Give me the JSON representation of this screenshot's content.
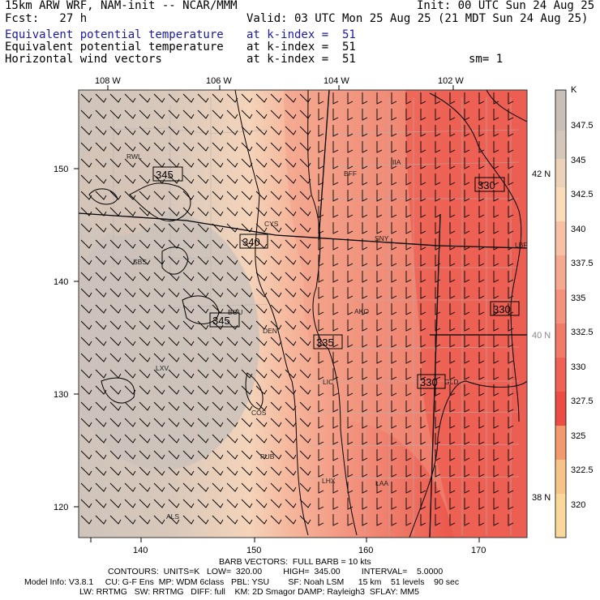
{
  "header": {
    "model_title": "15km ARW WRF, NAM-init -- NCAR/MMM",
    "init_time": "Init: 00 UTC Sun 24 Aug 25",
    "forecast_hour": "Fcst:   27 h",
    "valid_time": "Valid: 03 UTC Mon 25 Aug 25 (21 MDT Sun 24 Aug 25)",
    "fields": [
      {
        "name": "Equivalent potential temperature",
        "level": "at k-index =  51",
        "color": "#1a1aa8"
      },
      {
        "name": "Equivalent potential temperature",
        "level": "at k-index =  51",
        "color": "#000000"
      },
      {
        "name": "Horizontal wind vectors",
        "level": "at k-index =  51",
        "color": "#000000"
      }
    ],
    "smoothing": "sm= 1"
  },
  "map": {
    "top_lon_labels": [
      "108 W",
      "106 W",
      "104 W",
      "102 W"
    ],
    "right_lat_labels": [
      "42 N",
      "40 N",
      "38 N"
    ],
    "left_grid_labels": [
      "150",
      "140",
      "130",
      "120"
    ],
    "bottom_grid_labels": [
      "140",
      "150",
      "160",
      "170"
    ],
    "stations": [
      "RWL",
      "BFF",
      "IIA",
      "CYS",
      "SNY",
      "SBS",
      "LBF",
      "AKO",
      "BOU",
      "DEN",
      "LXV",
      "LIC",
      "GLD",
      "COS",
      "PUB",
      "LHX",
      "LAA",
      "ALS"
    ],
    "contour_labels": [
      "345",
      "340",
      "345",
      "335",
      "330",
      "330",
      "330"
    ],
    "wind_units_note": "BARB VECTORS:  FULL BARB = 10 kts"
  },
  "colorbar": {
    "unit": "K",
    "labels": [
      "347.5",
      "345",
      "342.5",
      "340",
      "337.5",
      "335",
      "332.5",
      "330",
      "327.5",
      "325",
      "322.5",
      "320"
    ],
    "colors": [
      "#c8c0b8",
      "#d4c6b8",
      "#ecd2b8",
      "#fadcb8",
      "#f8c0a4",
      "#f7a990",
      "#f5927c",
      "#f27a68",
      "#ef6254",
      "#ec4c44",
      "#f29a6e",
      "#f8c486",
      "#fad89a"
    ]
  },
  "footer": {
    "contours": "CONTOURS:  UNITS=K   LOW=  320.00         HIGH=  345.00         INTERVAL=    5.0000",
    "model_info_1": "Model Info: V3.8.1     CU: G-F Ens  MP: WDM 6class   PBL: YSU        SF: Noah LSM      15 km    51 levels    90 sec",
    "model_info_2": "LW: RRTMG   SW: RRTMG   DIFF: full    KM: 2D Smagor DAMP: Rayleigh3  SFLAY: MM5"
  }
}
